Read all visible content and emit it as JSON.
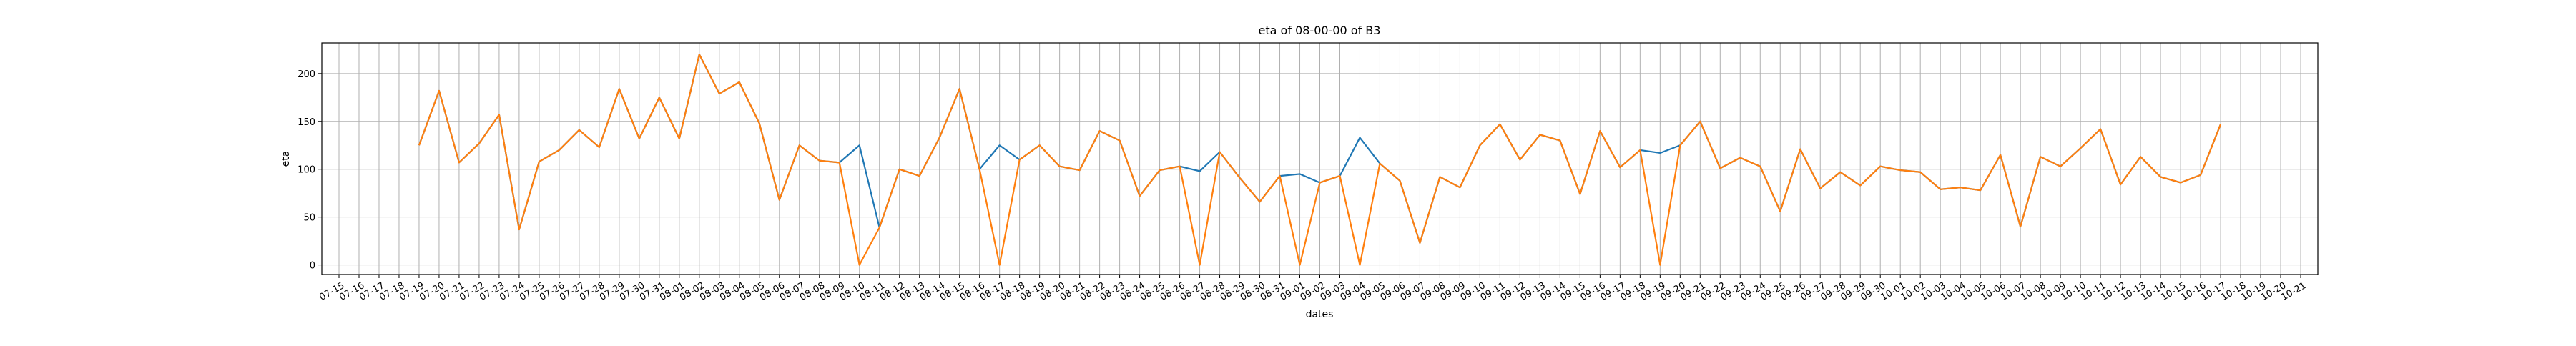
{
  "chart_data": {
    "type": "line",
    "title": "eta of 08-00-00 of B3",
    "xlabel": "dates",
    "ylabel": "eta",
    "grid": true,
    "ylim": [
      -10,
      232
    ],
    "yticks": [
      0,
      50,
      100,
      150,
      200
    ],
    "x_categories": [
      "07-15",
      "07-16",
      "07-17",
      "07-18",
      "07-19",
      "07-20",
      "07-21",
      "07-22",
      "07-23",
      "07-24",
      "07-25",
      "07-26",
      "07-27",
      "07-28",
      "07-29",
      "07-30",
      "07-31",
      "08-01",
      "08-02",
      "08-03",
      "08-04",
      "08-05",
      "08-06",
      "08-07",
      "08-08",
      "08-09",
      "08-10",
      "08-11",
      "08-12",
      "08-13",
      "08-14",
      "08-15",
      "08-16",
      "08-17",
      "08-18",
      "08-19",
      "08-20",
      "08-21",
      "08-22",
      "08-23",
      "08-24",
      "08-25",
      "08-26",
      "08-27",
      "08-28",
      "08-29",
      "08-30",
      "08-31",
      "09-01",
      "09-02",
      "09-03",
      "09-04",
      "09-05",
      "09-06",
      "09-07",
      "09-08",
      "09-09",
      "09-10",
      "09-11",
      "09-12",
      "09-13",
      "09-14",
      "09-15",
      "09-16",
      "09-17",
      "09-18",
      "09-19",
      "09-20",
      "09-21",
      "09-22",
      "09-23",
      "09-24",
      "09-25",
      "09-26",
      "09-27",
      "09-28",
      "09-29",
      "09-30",
      "10-01",
      "10-02",
      "10-03",
      "10-04",
      "10-05",
      "10-06",
      "10-07",
      "10-08",
      "10-09",
      "10-10",
      "10-11",
      "10-12",
      "10-13",
      "10-14",
      "10-15",
      "10-16",
      "10-17",
      "10-18",
      "10-19",
      "10-20",
      "10-21"
    ],
    "series": [
      {
        "color": "#1f77b4",
        "values": [
          null,
          null,
          null,
          null,
          125,
          182,
          107,
          127,
          157,
          37,
          108,
          120,
          141,
          123,
          184,
          132,
          175,
          132,
          220,
          179,
          191,
          148,
          68,
          125,
          109,
          107,
          125,
          39,
          100,
          93,
          133,
          184,
          100,
          125,
          110,
          125,
          103,
          99,
          140,
          130,
          72,
          99,
          103,
          98,
          118,
          91,
          66,
          93,
          95,
          86,
          93,
          133,
          106,
          88,
          23,
          92,
          81,
          125,
          147,
          110,
          136,
          130,
          74,
          140,
          102,
          120,
          117,
          125,
          150,
          101,
          112,
          103,
          56,
          121,
          80,
          97,
          83,
          103,
          99,
          97,
          79,
          81,
          78,
          115,
          40,
          113,
          103,
          122,
          142,
          84,
          113,
          92,
          86,
          94,
          147,
          null,
          null,
          null,
          null
        ]
      },
      {
        "color": "#ff7f0e",
        "values": [
          null,
          null,
          null,
          null,
          125,
          182,
          107,
          127,
          157,
          37,
          108,
          120,
          141,
          123,
          184,
          132,
          175,
          132,
          220,
          179,
          191,
          148,
          68,
          125,
          109,
          107,
          0,
          39,
          100,
          93,
          133,
          184,
          100,
          0,
          110,
          125,
          103,
          99,
          140,
          130,
          72,
          99,
          103,
          0,
          118,
          91,
          66,
          93,
          0,
          86,
          93,
          0,
          106,
          88,
          23,
          92,
          81,
          125,
          147,
          110,
          136,
          130,
          74,
          140,
          102,
          120,
          0,
          125,
          150,
          101,
          112,
          103,
          56,
          121,
          80,
          97,
          83,
          103,
          99,
          97,
          79,
          81,
          78,
          115,
          40,
          113,
          103,
          122,
          142,
          84,
          113,
          92,
          86,
          94,
          147,
          null,
          null,
          null,
          null
        ]
      }
    ]
  }
}
